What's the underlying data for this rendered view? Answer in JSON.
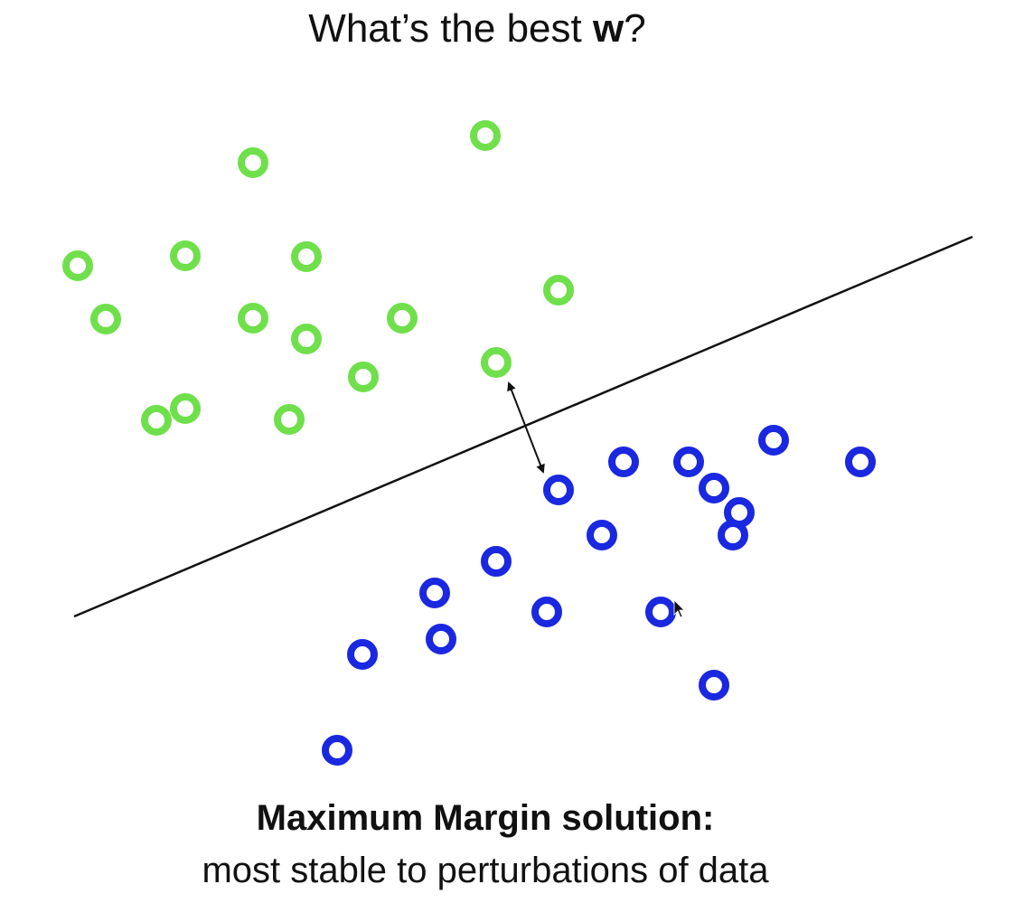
{
  "title": {
    "prefix": "What’s the best ",
    "emphasis": "w",
    "suffix": "?"
  },
  "caption": {
    "heading": "Maximum Margin solution:",
    "subheading": "most stable to perturbations of data"
  },
  "colors": {
    "class_a": "#6fe04b",
    "class_b": "#1a28e0",
    "separator": "#111111",
    "margin_arrow": "#111111",
    "background": "#ffffff"
  },
  "icons": {
    "data_point": "ring-marker",
    "cursor": "mouse-cursor-icon"
  }
}
